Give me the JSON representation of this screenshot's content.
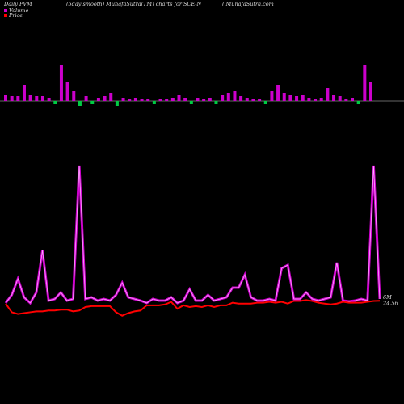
{
  "chart_data": {
    "type": "pvm",
    "label": "Daily PVM",
    "title": "(5day smooth) MunafaSutra(TM) charts for SCE-N",
    "source": "( MunafaSutra.com",
    "bars": {
      "color": "#cc00cc",
      "negative_color": "#00cc44",
      "ylim": [
        -50,
        50
      ],
      "values": [
        8,
        6,
        6,
        20,
        8,
        6,
        6,
        4,
        -4,
        45,
        24,
        12,
        -6,
        6,
        -4,
        4,
        6,
        10,
        -6,
        4,
        2,
        4,
        2,
        2,
        -4,
        2,
        2,
        4,
        8,
        4,
        -4,
        4,
        2,
        4,
        -4,
        8,
        10,
        12,
        6,
        4,
        2,
        2,
        -4,
        12,
        20,
        10,
        8,
        6,
        8,
        4,
        2,
        4,
        16,
        8,
        6,
        2,
        4,
        -4,
        44,
        24
      ]
    },
    "ylim": [
      0,
      18000000
    ],
    "y2lim": [
      20,
      34
    ],
    "series": [
      {
        "name": "Volume",
        "color": "#cc00cc",
        "values": [
          5700000,
          6300000,
          7500000,
          6120000,
          5700000,
          6480000,
          9600000,
          5880000,
          6000000,
          6480000,
          5880000,
          6000000,
          15900000,
          6000000,
          6120000,
          5880000,
          6000000,
          5880000,
          6300000,
          7200000,
          6120000,
          6000000,
          5880000,
          5700000,
          6000000,
          5880000,
          5880000,
          6120000,
          5700000,
          5880000,
          6720000,
          5880000,
          5880000,
          6300000,
          5880000,
          6000000,
          6120000,
          6840000,
          6840000,
          7800000,
          6120000,
          5880000,
          5880000,
          6000000,
          5880000,
          8280000,
          8520000,
          6000000,
          6000000,
          6480000,
          6000000,
          5880000,
          6000000,
          6120000,
          8700000,
          5880000,
          5820000,
          5880000,
          6000000,
          5880000,
          15900000,
          6000000
        ],
        "value_labels": [
          null,
          null,
          null,
          null,
          null,
          null,
          null,
          null,
          null,
          null,
          null,
          null,
          null,
          null,
          null,
          null,
          null,
          null,
          null,
          null,
          null,
          null,
          null,
          null,
          null,
          null,
          null,
          null,
          null,
          null,
          null,
          null,
          null,
          null,
          null,
          null,
          null,
          null,
          null,
          null,
          null,
          null,
          null,
          null,
          null,
          null,
          null,
          null,
          null,
          null,
          null,
          null,
          null,
          null,
          null,
          null,
          null,
          null,
          null,
          null,
          null,
          "6M"
        ]
      },
      {
        "name": "Price",
        "color": "#ff0000",
        "axis": "y2",
        "values": [
          24.4,
          23.9,
          23.8,
          23.85,
          23.9,
          23.95,
          23.95,
          24.0,
          24.0,
          24.05,
          24.05,
          23.95,
          24.0,
          24.2,
          24.25,
          24.25,
          24.25,
          24.25,
          23.9,
          23.7,
          23.85,
          23.95,
          24.0,
          24.3,
          24.3,
          24.3,
          24.35,
          24.5,
          24.1,
          24.3,
          24.2,
          24.25,
          24.2,
          24.3,
          24.2,
          24.3,
          24.3,
          24.45,
          24.4,
          24.4,
          24.4,
          24.45,
          24.45,
          24.5,
          24.45,
          24.5,
          24.4,
          24.55,
          24.55,
          24.6,
          24.55,
          24.45,
          24.4,
          24.35,
          24.4,
          24.5,
          24.45,
          24.45,
          24.45,
          24.5,
          24.55,
          24.56
        ]
      }
    ]
  }
}
